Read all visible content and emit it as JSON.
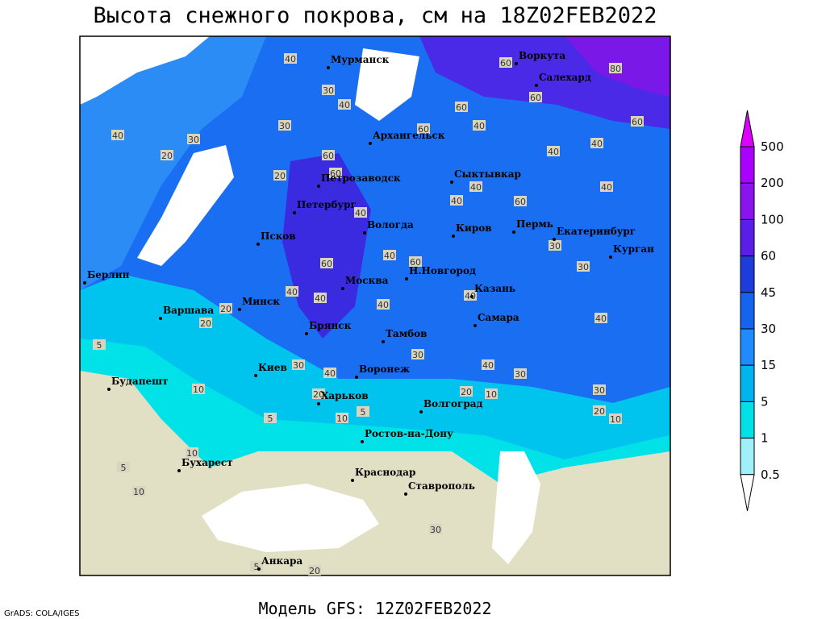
{
  "header": {
    "title": "Высота снежного покрова, см на 18Z02FEB2022"
  },
  "cities": [
    "Мурманск",
    "Воркута",
    "Салехард",
    "Архангельск",
    "Петрозаводск",
    "Сыктывкар",
    "Петербург",
    "Псков",
    "Вологда",
    "Киров",
    "Пермь",
    "Екатеринбург",
    "Курган",
    "Берлин",
    "Москва",
    "Н.Новгород",
    "Казань",
    "Минск",
    "Варшава",
    "Брянск",
    "Тамбов",
    "Самара",
    "Киев",
    "Воронеж",
    "Будапешт",
    "Харьков",
    "Волгоград",
    "Ростов-на-Дону",
    "Бухарест",
    "Краснодар",
    "Ставрополь",
    "Анкара"
  ],
  "contour_labels": [
    40,
    30,
    40,
    30,
    60,
    20,
    60,
    40,
    20,
    30,
    40,
    60,
    80,
    60,
    60,
    40,
    60,
    40,
    40,
    60,
    40,
    40,
    40,
    60,
    30,
    30,
    60,
    40,
    60,
    40,
    40,
    40,
    40,
    20,
    20,
    30,
    40,
    30,
    40,
    30,
    40,
    20,
    20,
    10,
    30,
    20,
    10,
    10,
    5,
    5,
    10,
    5,
    10,
    5,
    10,
    30,
    5,
    20
  ],
  "legend": {
    "levels": [
      500,
      200,
      100,
      60,
      45,
      30,
      15,
      5,
      1,
      0.5
    ],
    "colors": [
      "#aa00ff",
      "#8a14ee",
      "#5a1ee6",
      "#1e3cdc",
      "#1464f0",
      "#1e8cff",
      "#00b4f0",
      "#00e0e6",
      "#a0f0f8"
    ],
    "top_color": "#dc00ff",
    "bottom_color": "#ffffff"
  },
  "footer": {
    "model": "Модель GFS: 12Z02FEB2022",
    "credit": "GrADS: COLA/IGES"
  }
}
